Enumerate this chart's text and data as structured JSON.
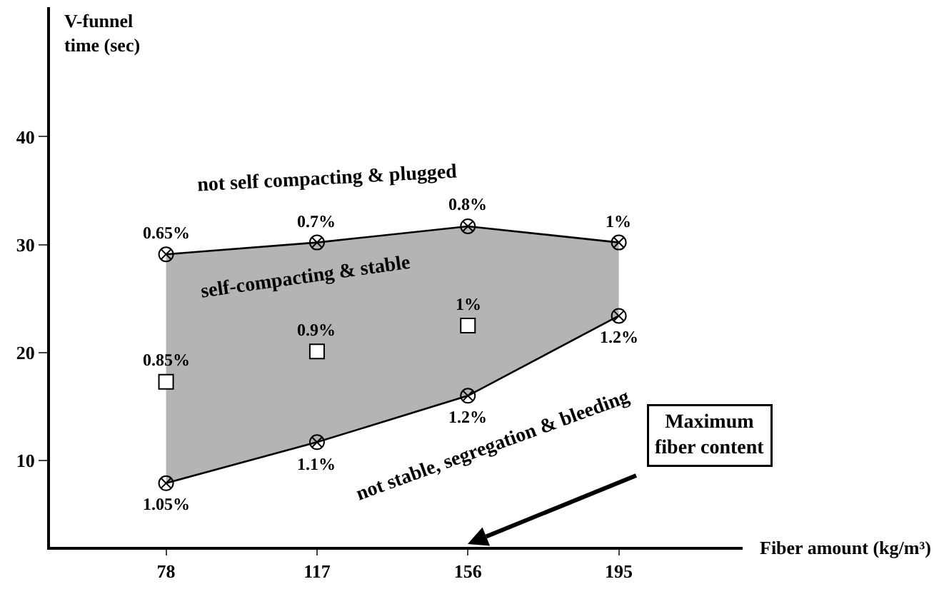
{
  "chart_data": {
    "type": "line",
    "xlabel": "Fiber amount (kg/m³)",
    "ylabel": "V-funnel\ntime (sec)",
    "x": [
      78,
      117,
      156,
      195
    ],
    "series": [
      {
        "color": "#000000",
        "marker": "cross",
        "values": [
          29.1,
          30.2,
          31.7,
          30.2
        ]
      },
      {
        "color": "#000000",
        "marker": "cross",
        "values": [
          7.9,
          11.7,
          16.0,
          23.4
        ]
      },
      {
        "type": "scatter",
        "color": "#ffffff",
        "marker": "square",
        "values": [
          17.3,
          20.1,
          22.5,
          null
        ]
      }
    ],
    "xlim": [
      48,
      227
    ],
    "xticks": [
      78,
      117,
      156,
      195
    ],
    "ylim": [
      2,
      52
    ],
    "yticks": [
      10,
      20,
      30,
      40
    ],
    "grid": false,
    "annotations": [
      "not self compacting & plugged",
      "self-compacting & stable",
      "not stable, segregation & bleeding",
      "Maximum\nfiber content",
      {
        "text": "0.65%",
        "x": 78,
        "y": 29.1
      },
      {
        "text": "0.7%",
        "x": 117,
        "y": 30.2
      },
      {
        "text": "0.8%",
        "x": 156,
        "y": 31.7
      },
      {
        "text": "1%",
        "x": 195,
        "y": 30.2
      },
      {
        "text": "1.05%",
        "x": 78,
        "y": 7.9
      },
      {
        "text": "1.1%",
        "x": 117,
        "y": 11.7
      },
      {
        "text": "1.2%",
        "x": 156,
        "y": 16.0
      },
      {
        "text": "1.2%",
        "x": 195,
        "y": 23.4
      },
      {
        "text": "0.85%",
        "x": 78,
        "y": 17.3
      },
      {
        "text": "0.9%",
        "x": 117,
        "y": 20.1
      },
      {
        "text": "1%",
        "x": 156,
        "y": 22.5
      }
    ]
  }
}
